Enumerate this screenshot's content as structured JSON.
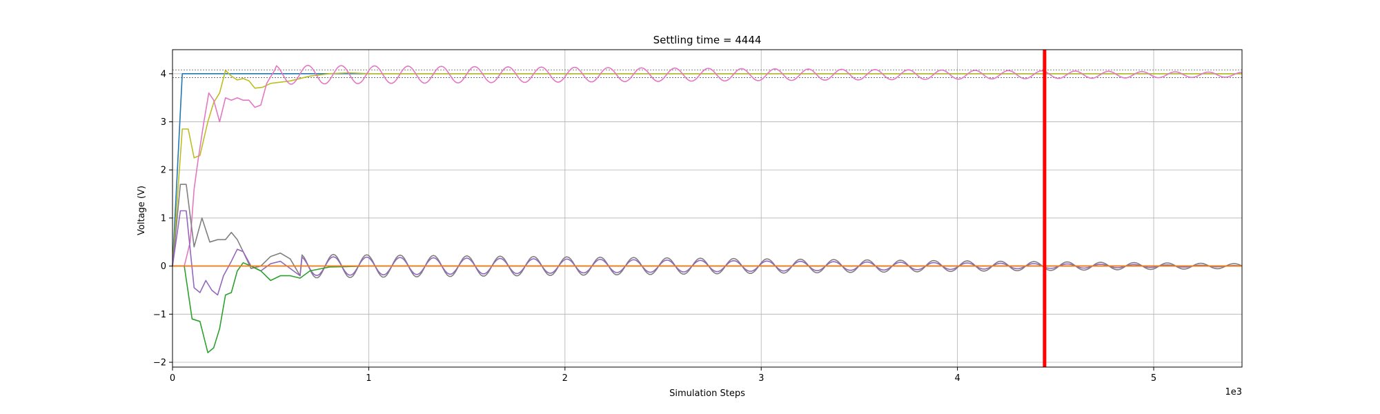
{
  "chart_data": {
    "type": "line",
    "title": "Settling time = 4444",
    "xlabel": "Simulation Steps",
    "ylabel": "Voltage (V)",
    "x_scale_label": "1e3",
    "xlim": [
      0,
      5450
    ],
    "ylim": [
      -2.1,
      4.5
    ],
    "x_tick_values": [
      0,
      1000,
      2000,
      3000,
      4000,
      5000
    ],
    "x_tick_labels": [
      "0",
      "1",
      "2",
      "3",
      "4",
      "5"
    ],
    "y_tick_values": [
      -2,
      -1,
      0,
      1,
      2,
      3,
      4
    ],
    "y_tick_labels": [
      "−2",
      "−1",
      "0",
      "1",
      "2",
      "3",
      "4"
    ],
    "grid": true,
    "settling_marker_x": 4444,
    "settling_marker_color": "#ff0000",
    "tolerance_band": [
      3.92,
      4.08
    ],
    "tolerance_band_color": "#555555",
    "series": [
      {
        "color": "#1f77b4",
        "points": [
          [
            0,
            0
          ],
          [
            50,
            4.0
          ],
          [
            5450,
            4.0
          ]
        ]
      },
      {
        "color": "#bcbd22",
        "points": [
          [
            0,
            0
          ],
          [
            50,
            2.85
          ],
          [
            80,
            2.85
          ],
          [
            110,
            2.25
          ],
          [
            140,
            2.3
          ],
          [
            180,
            3.0
          ],
          [
            210,
            3.4
          ],
          [
            240,
            3.6
          ],
          [
            270,
            4.07
          ],
          [
            300,
            3.95
          ],
          [
            330,
            3.87
          ],
          [
            360,
            3.9
          ],
          [
            390,
            3.85
          ],
          [
            420,
            3.7
          ],
          [
            460,
            3.72
          ],
          [
            500,
            3.8
          ],
          [
            540,
            3.82
          ],
          [
            600,
            3.85
          ],
          [
            700,
            3.95
          ],
          [
            800,
            4.0
          ],
          [
            900,
            4.02
          ],
          [
            1000,
            4.0
          ],
          [
            5450,
            4.0
          ]
        ]
      },
      {
        "color": "#e377c2",
        "points": [
          [
            0,
            0
          ],
          [
            60,
            0
          ],
          [
            90,
            0.5
          ],
          [
            110,
            1.6
          ],
          [
            130,
            2.2
          ],
          [
            160,
            3.0
          ],
          [
            185,
            3.6
          ],
          [
            210,
            3.45
          ],
          [
            240,
            3.0
          ],
          [
            270,
            3.5
          ],
          [
            300,
            3.45
          ],
          [
            330,
            3.5
          ],
          [
            360,
            3.45
          ],
          [
            390,
            3.45
          ],
          [
            420,
            3.3
          ],
          [
            450,
            3.35
          ],
          [
            480,
            3.8
          ],
          [
            520,
            4.07
          ]
        ],
        "oscillation": {
          "x_start": 520,
          "x_end": 5450,
          "center": 3.98,
          "amp_start": 0.2,
          "amp_end": 0.05,
          "period": 170
        }
      },
      {
        "color": "#7f7f7f",
        "points": [
          [
            0,
            0
          ],
          [
            40,
            1.7
          ],
          [
            70,
            1.7
          ],
          [
            110,
            0.4
          ],
          [
            150,
            1.0
          ],
          [
            190,
            0.5
          ],
          [
            230,
            0.55
          ],
          [
            270,
            0.55
          ],
          [
            300,
            0.7
          ],
          [
            330,
            0.55
          ],
          [
            360,
            0.3
          ],
          [
            400,
            -0.05
          ],
          [
            450,
            0.0
          ],
          [
            500,
            0.2
          ],
          [
            550,
            0.27
          ],
          [
            600,
            0.15
          ],
          [
            650,
            -0.2
          ]
        ],
        "oscillation": {
          "x_start": 650,
          "x_end": 5450,
          "center": 0.0,
          "amp_start": 0.25,
          "amp_end": 0.05,
          "period": 170
        }
      },
      {
        "color": "#9467bd",
        "points": [
          [
            0,
            0
          ],
          [
            40,
            1.15
          ],
          [
            70,
            1.15
          ],
          [
            110,
            -0.45
          ],
          [
            140,
            -0.55
          ],
          [
            170,
            -0.3
          ],
          [
            200,
            -0.5
          ],
          [
            230,
            -0.6
          ],
          [
            260,
            -0.2
          ],
          [
            300,
            0.1
          ],
          [
            330,
            0.35
          ],
          [
            360,
            0.3
          ],
          [
            400,
            0.0
          ],
          [
            450,
            -0.1
          ],
          [
            500,
            0.05
          ],
          [
            550,
            0.1
          ],
          [
            600,
            -0.05
          ],
          [
            650,
            -0.2
          ]
        ],
        "oscillation": {
          "x_start": 650,
          "x_end": 5450,
          "center": 0.0,
          "amp_start": 0.2,
          "amp_end": 0.01,
          "period": 170
        }
      },
      {
        "color": "#2ca02c",
        "points": [
          [
            0,
            0
          ],
          [
            60,
            0
          ],
          [
            100,
            -1.1
          ],
          [
            140,
            -1.15
          ],
          [
            180,
            -1.8
          ],
          [
            210,
            -1.7
          ],
          [
            240,
            -1.3
          ],
          [
            270,
            -0.6
          ],
          [
            300,
            -0.55
          ],
          [
            330,
            -0.1
          ],
          [
            360,
            0.07
          ],
          [
            400,
            0.0
          ],
          [
            450,
            -0.1
          ],
          [
            500,
            -0.3
          ],
          [
            550,
            -0.2
          ],
          [
            600,
            -0.2
          ],
          [
            650,
            -0.25
          ],
          [
            700,
            -0.1
          ],
          [
            800,
            -0.02
          ],
          [
            900,
            -0.01
          ],
          [
            1000,
            0
          ],
          [
            5450,
            0
          ]
        ]
      },
      {
        "color": "#8c564b",
        "points": [
          [
            0,
            0
          ],
          [
            5450,
            0
          ]
        ]
      },
      {
        "color": "#ff7f0e",
        "points": [
          [
            0,
            0
          ],
          [
            5450,
            0
          ]
        ]
      }
    ]
  }
}
